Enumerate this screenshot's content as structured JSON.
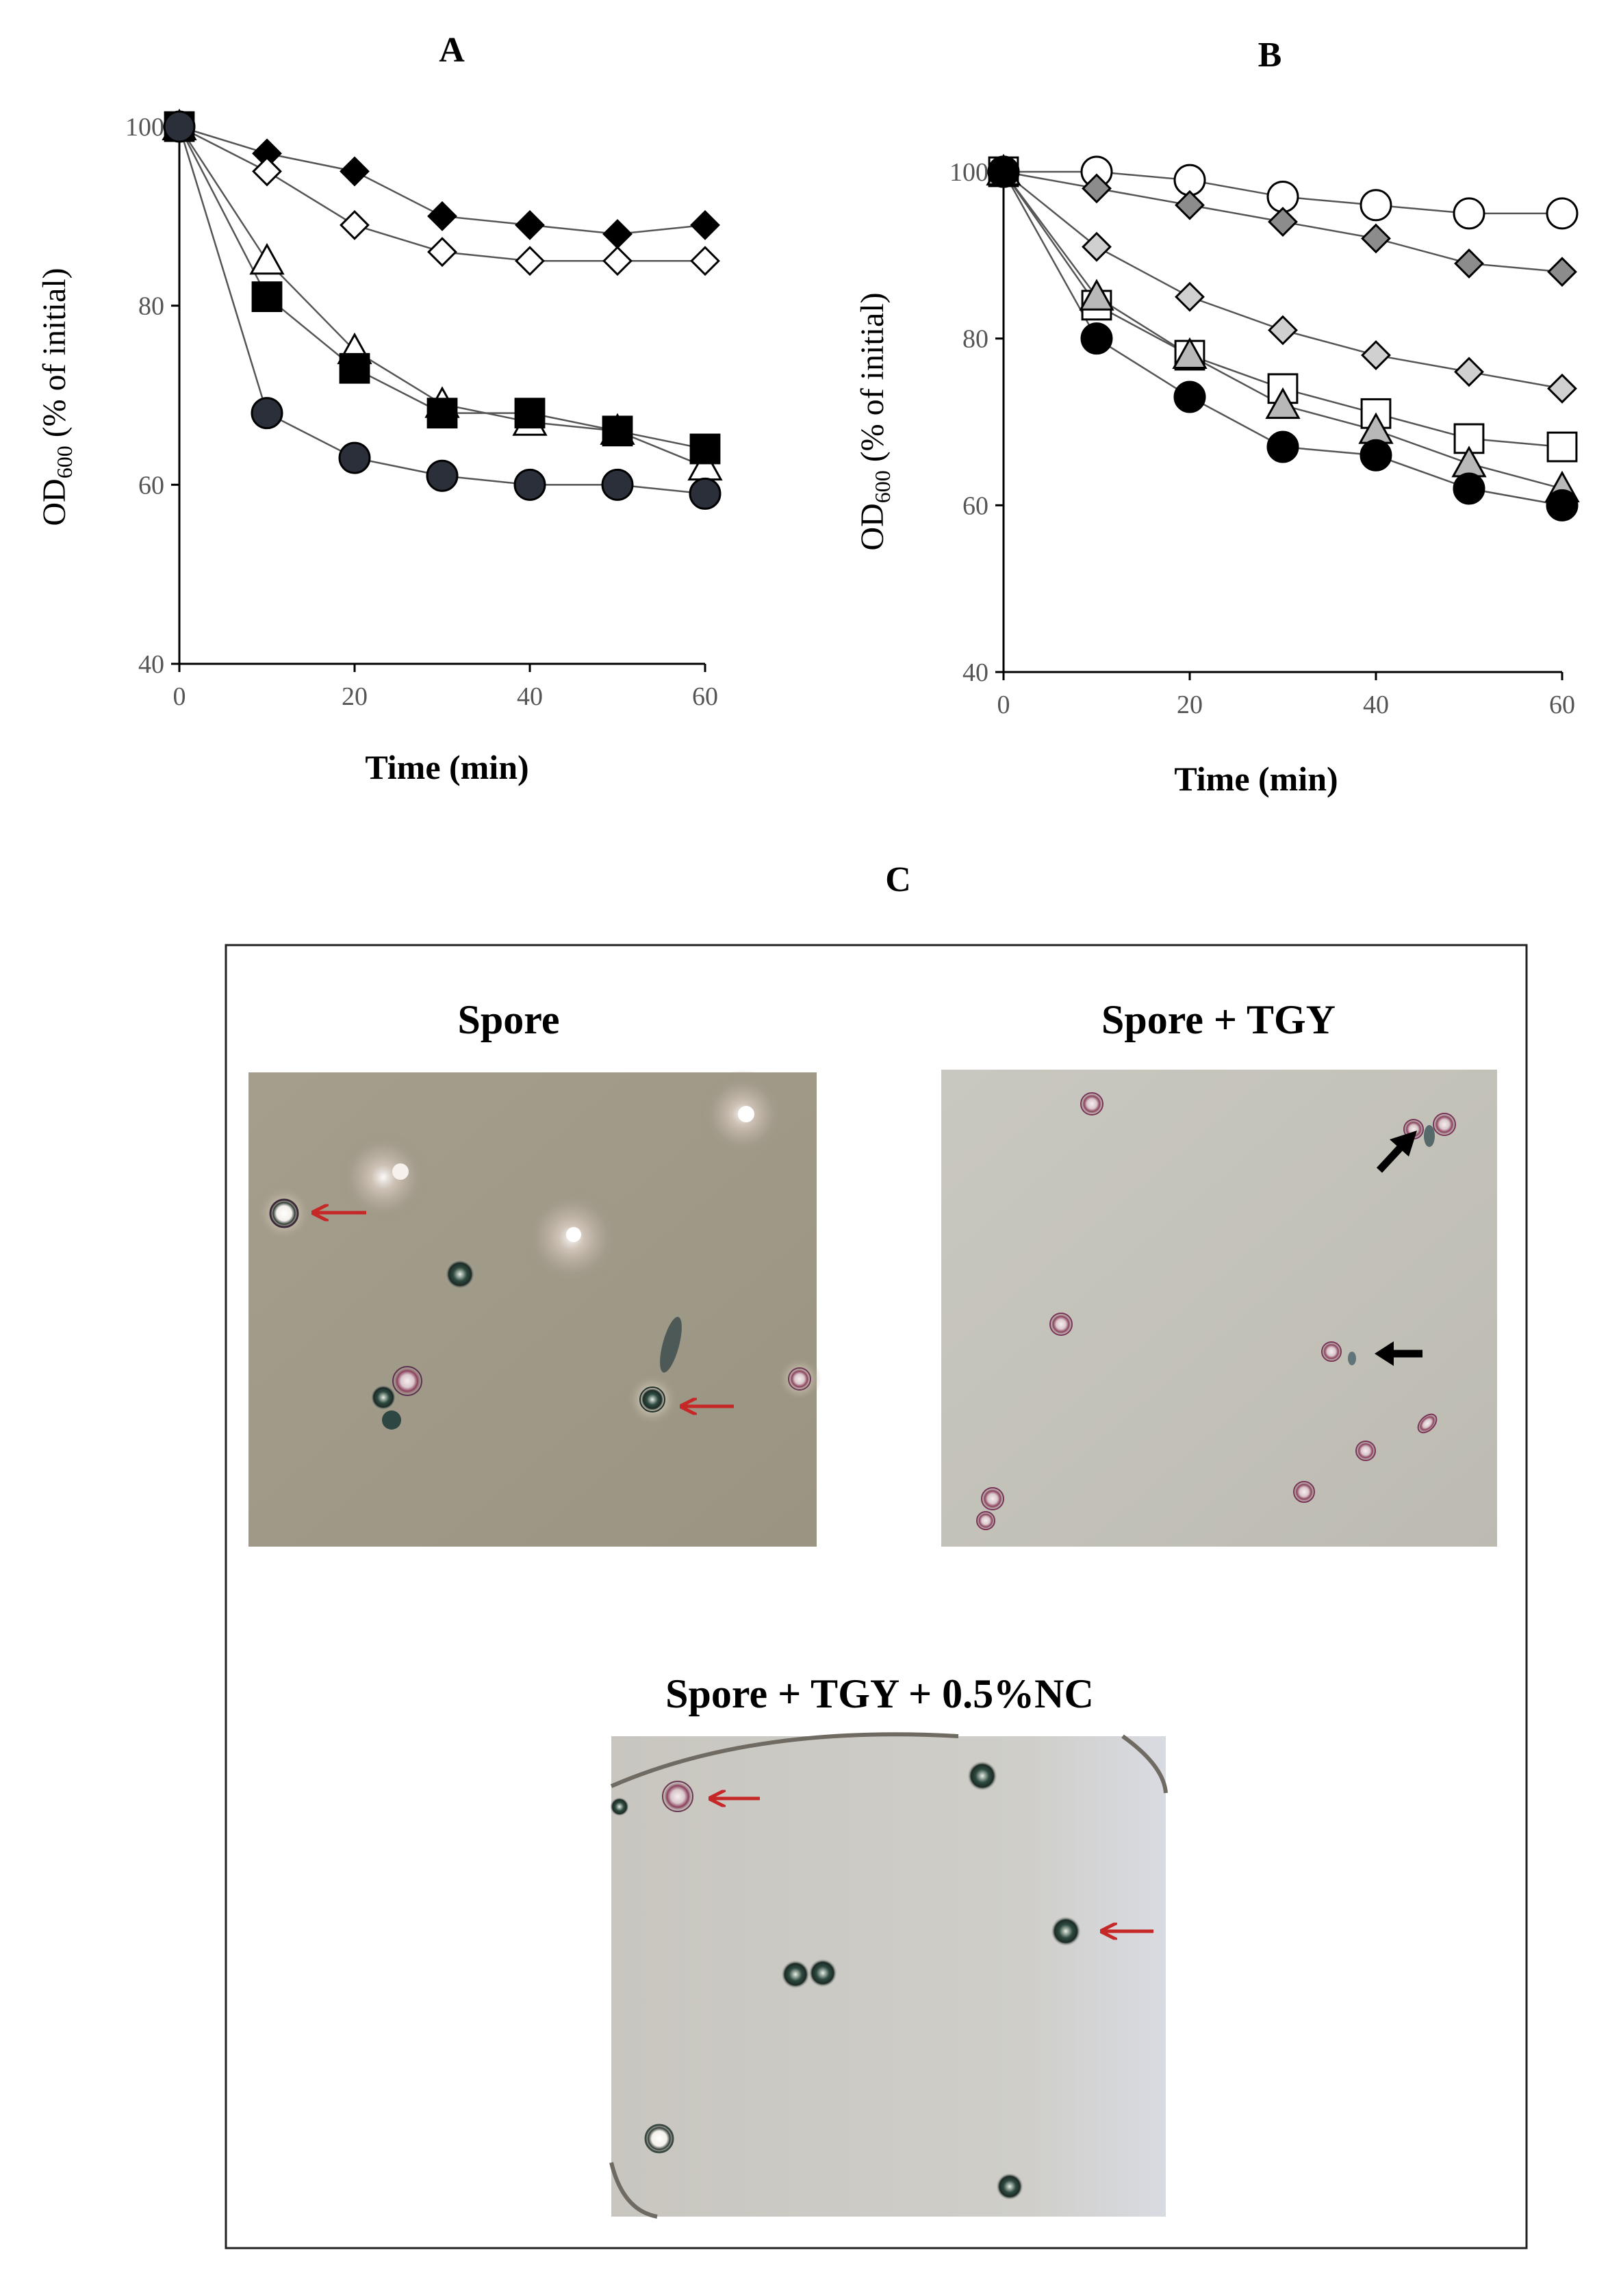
{
  "panels": {
    "A": "A",
    "B": "B",
    "C": "C"
  },
  "micrograph_titles": {
    "spore": "Spore",
    "spore_tgy": "Spore + TGY",
    "spore_tgy_nc": "Spore + TGY + 0.5%NC"
  },
  "chart_data": [
    {
      "panel": "A",
      "type": "line",
      "xlabel": "Time (min)",
      "ylabel_main": "OD",
      "ylabel_sub": "600",
      "ylabel_rest": " (% of initial)",
      "xlim": [
        0,
        60
      ],
      "ylim": [
        40,
        100
      ],
      "xticks": [
        0,
        20,
        40,
        60
      ],
      "yticks": [
        40,
        60,
        80,
        100
      ],
      "grid": false,
      "series": [
        {
          "marker": "diamond",
          "fill": "#000000",
          "x": [
            0,
            10,
            20,
            30,
            40,
            50,
            60
          ],
          "y": [
            100,
            97,
            95,
            90,
            89,
            88,
            89
          ]
        },
        {
          "marker": "diamond",
          "fill": "#ffffff",
          "x": [
            0,
            10,
            20,
            30,
            40,
            50,
            60
          ],
          "y": [
            100,
            95,
            89,
            86,
            85,
            85,
            85
          ]
        },
        {
          "marker": "triangle",
          "fill": "#ffffff",
          "x": [
            0,
            10,
            20,
            30,
            40,
            50,
            60
          ],
          "y": [
            100,
            85,
            75,
            69,
            67,
            66,
            62
          ]
        },
        {
          "marker": "square",
          "fill": "#000000",
          "x": [
            0,
            10,
            20,
            30,
            40,
            50,
            60
          ],
          "y": [
            100,
            81,
            73,
            68,
            68,
            66,
            64
          ]
        },
        {
          "marker": "circle",
          "fill": "#2b2f3a",
          "x": [
            0,
            10,
            20,
            30,
            40,
            50,
            60
          ],
          "y": [
            100,
            68,
            63,
            61,
            60,
            60,
            59
          ]
        }
      ]
    },
    {
      "panel": "B",
      "type": "line",
      "xlabel": "Time (min)",
      "ylabel_main": "OD",
      "ylabel_sub": "600",
      "ylabel_rest": " (% of initial)",
      "xlim": [
        0,
        60
      ],
      "ylim": [
        40,
        100
      ],
      "xticks": [
        0,
        20,
        40,
        60
      ],
      "yticks": [
        40,
        60,
        80,
        100
      ],
      "grid": false,
      "series": [
        {
          "marker": "circle",
          "fill": "#ffffff",
          "x": [
            0,
            10,
            20,
            30,
            40,
            50,
            60
          ],
          "y": [
            100,
            100,
            99,
            97,
            96,
            95,
            95
          ]
        },
        {
          "marker": "diamond",
          "fill": "#8c8c8c",
          "x": [
            0,
            10,
            20,
            30,
            40,
            50,
            60
          ],
          "y": [
            100,
            98,
            96,
            94,
            92,
            89,
            88
          ]
        },
        {
          "marker": "diamond",
          "fill": "#d0d0d0",
          "x": [
            0,
            10,
            20,
            30,
            40,
            50,
            60
          ],
          "y": [
            100,
            91,
            85,
            81,
            78,
            76,
            74
          ]
        },
        {
          "marker": "square",
          "fill": "#ffffff",
          "x": [
            0,
            10,
            20,
            30,
            40,
            50,
            60
          ],
          "y": [
            100,
            84,
            78,
            74,
            71,
            68,
            67
          ]
        },
        {
          "marker": "triangle",
          "fill": "#b8b8b8",
          "x": [
            0,
            10,
            20,
            30,
            40,
            50,
            60
          ],
          "y": [
            100,
            85,
            78,
            72,
            69,
            65,
            62
          ]
        },
        {
          "marker": "circle",
          "fill": "#000000",
          "x": [
            0,
            10,
            20,
            30,
            40,
            50,
            60
          ],
          "y": [
            100,
            80,
            73,
            67,
            66,
            62,
            60
          ]
        }
      ]
    }
  ]
}
